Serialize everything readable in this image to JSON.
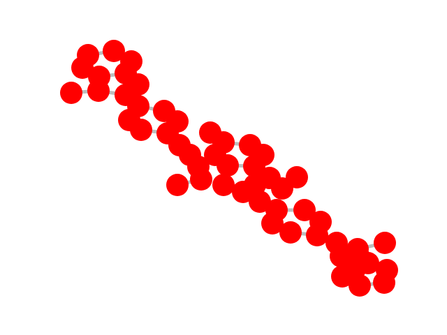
{
  "graph": {
    "node_color": "#ff0000",
    "edge_color": "#bdbdbd",
    "background": "#ffffff",
    "node_count": 52
  }
}
